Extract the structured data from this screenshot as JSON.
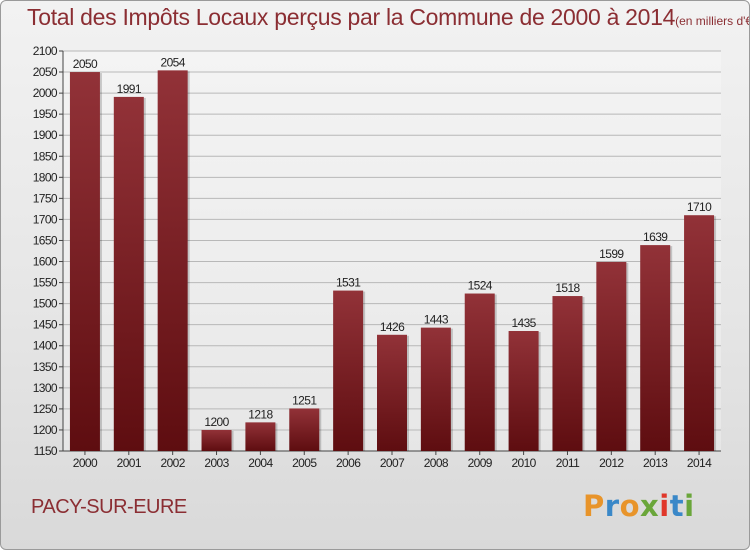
{
  "chart_data": {
    "type": "bar",
    "title": "Total des Impôts Locaux perçus par la Commune de 2000 à 2014",
    "unit_label": "(en milliers d'€)",
    "categories": [
      "2000",
      "2001",
      "2002",
      "2003",
      "2004",
      "2005",
      "2006",
      "2007",
      "2008",
      "2009",
      "2010",
      "2011",
      "2012",
      "2013",
      "2014"
    ],
    "values": [
      2050,
      1991,
      2054,
      1200,
      1218,
      1251,
      1531,
      1426,
      1443,
      1524,
      1435,
      1518,
      1599,
      1639,
      1710
    ],
    "xlabel": "",
    "ylabel": "",
    "ylim": [
      1150,
      2100
    ],
    "ytick_step": 50,
    "grid": true,
    "bar_color": "#8b2228"
  },
  "footer": {
    "commune": "PACY-SUR-EURE",
    "logo_text": "Proxiti",
    "logo_colors": [
      "#e8942a",
      "#3a88c8",
      "#e8942a",
      "#6aa63a",
      "#e0372a",
      "#3a88c8",
      "#6aa63a"
    ]
  }
}
